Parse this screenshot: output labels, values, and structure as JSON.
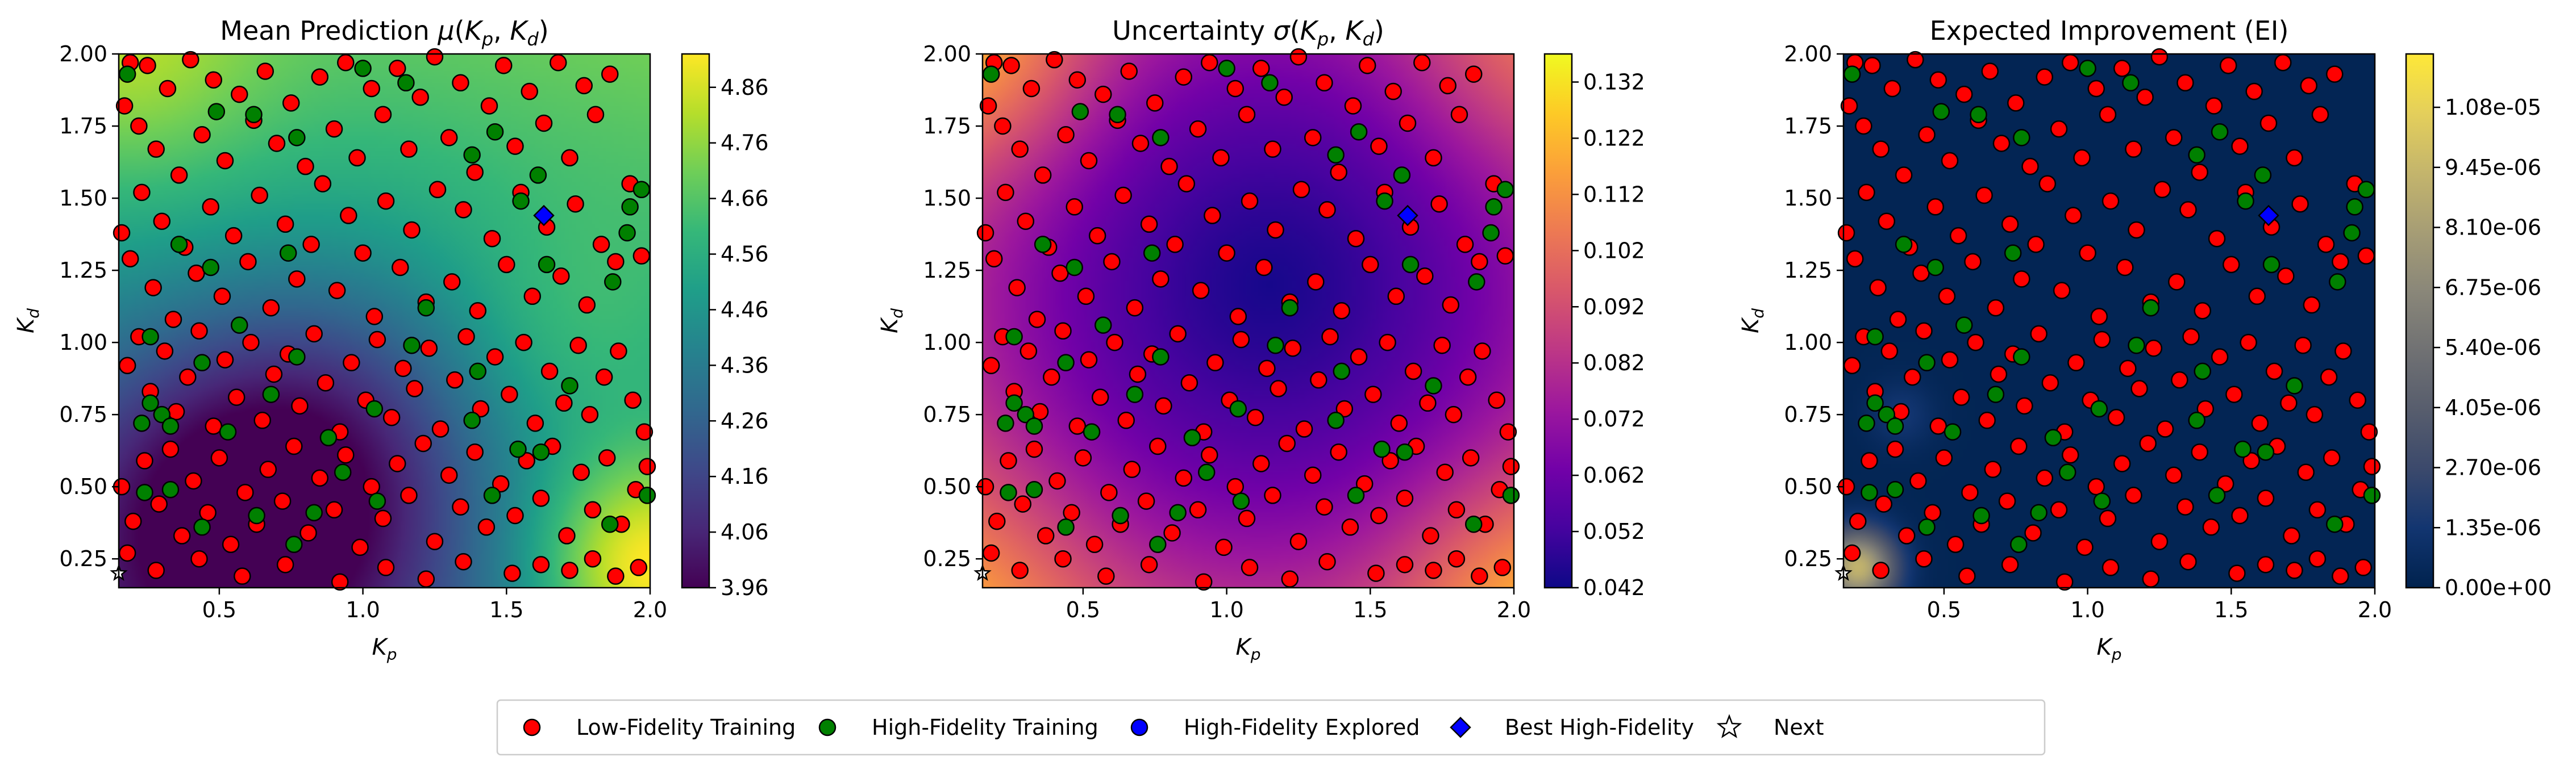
{
  "chart_data": [
    {
      "type": "heatmap",
      "title": "Mean Prediction μ(K_p, K_d)",
      "title_parts": {
        "pre": "Mean Prediction ",
        "var": "μ",
        "open": "(",
        "a": "K",
        "a_sub": "p",
        "comma": ", ",
        "b": "K",
        "b_sub": "d",
        "close": ")"
      },
      "xlabel": {
        "base": "K",
        "sub": "p"
      },
      "ylabel": {
        "base": "K",
        "sub": "d"
      },
      "xlim": [
        0.15,
        2.0
      ],
      "ylim": [
        0.15,
        2.0
      ],
      "xticks": [
        "0.5",
        "1.0",
        "1.5",
        "2.0"
      ],
      "yticks": [
        "0.25",
        "0.50",
        "0.75",
        "1.00",
        "1.25",
        "1.50",
        "1.75",
        "2.00"
      ],
      "colormap": "viridis",
      "colorbar_range": [
        3.96,
        4.92
      ],
      "colorbar_ticks": [
        "3.96",
        "4.06",
        "4.16",
        "4.26",
        "4.36",
        "4.46",
        "4.56",
        "4.66",
        "4.76",
        "4.86"
      ]
    },
    {
      "type": "heatmap",
      "title": "Uncertainty σ(K_p, K_d)",
      "title_parts": {
        "pre": "Uncertainty ",
        "var": "σ",
        "open": "(",
        "a": "K",
        "a_sub": "p",
        "comma": ", ",
        "b": "K",
        "b_sub": "d",
        "close": ")"
      },
      "xlabel": {
        "base": "K",
        "sub": "p"
      },
      "ylabel": {
        "base": "K",
        "sub": "d"
      },
      "xlim": [
        0.15,
        2.0
      ],
      "ylim": [
        0.15,
        2.0
      ],
      "xticks": [
        "0.5",
        "1.0",
        "1.5",
        "2.0"
      ],
      "yticks": [
        "0.25",
        "0.50",
        "0.75",
        "1.00",
        "1.25",
        "1.50",
        "1.75",
        "2.00"
      ],
      "colormap": "plasma",
      "colorbar_range": [
        0.042,
        0.137
      ],
      "colorbar_ticks": [
        "0.042",
        "0.052",
        "0.062",
        "0.072",
        "0.082",
        "0.092",
        "0.102",
        "0.112",
        "0.122",
        "0.132"
      ]
    },
    {
      "type": "heatmap",
      "title": "Expected Improvement (EI)",
      "title_parts": {
        "pre": "Expected Improvement (EI)",
        "var": "",
        "open": "",
        "a": "",
        "a_sub": "",
        "comma": "",
        "b": "",
        "b_sub": "",
        "close": ""
      },
      "xlabel": {
        "base": "K",
        "sub": "p"
      },
      "ylabel": {
        "base": "K",
        "sub": "d"
      },
      "xlim": [
        0.15,
        2.0
      ],
      "ylim": [
        0.15,
        2.0
      ],
      "xticks": [
        "0.5",
        "1.0",
        "1.5",
        "2.0"
      ],
      "yticks": [
        "0.25",
        "0.50",
        "0.75",
        "1.00",
        "1.25",
        "1.50",
        "1.75",
        "2.00"
      ],
      "colormap": "cividis",
      "colorbar_range": [
        0.0,
        1.2e-05
      ],
      "colorbar_ticks": [
        "0.00e+00",
        "1.35e-06",
        "2.70e-06",
        "4.05e-06",
        "5.40e-06",
        "6.75e-06",
        "8.10e-06",
        "9.45e-06",
        "1.08e-05"
      ]
    }
  ],
  "points": {
    "low_fidelity": [
      [
        0.17,
        1.82
      ],
      [
        0.19,
        1.97
      ],
      [
        0.22,
        1.75
      ],
      [
        0.25,
        1.96
      ],
      [
        0.28,
        1.67
      ],
      [
        0.32,
        1.88
      ],
      [
        0.36,
        1.58
      ],
      [
        0.4,
        1.98
      ],
      [
        0.44,
        1.72
      ],
      [
        0.48,
        1.91
      ],
      [
        0.52,
        1.63
      ],
      [
        0.57,
        1.86
      ],
      [
        0.62,
        1.77
      ],
      [
        0.66,
        1.94
      ],
      [
        0.7,
        1.69
      ],
      [
        0.75,
        1.83
      ],
      [
        0.8,
        1.61
      ],
      [
        0.85,
        1.92
      ],
      [
        0.9,
        1.74
      ],
      [
        0.94,
        1.97
      ],
      [
        0.98,
        1.64
      ],
      [
        1.03,
        1.88
      ],
      [
        1.07,
        1.79
      ],
      [
        1.12,
        1.95
      ],
      [
        1.16,
        1.67
      ],
      [
        1.2,
        1.85
      ],
      [
        1.25,
        1.99
      ],
      [
        1.3,
        1.71
      ],
      [
        1.34,
        1.9
      ],
      [
        1.39,
        1.59
      ],
      [
        1.44,
        1.82
      ],
      [
        1.49,
        1.96
      ],
      [
        1.53,
        1.68
      ],
      [
        1.58,
        1.87
      ],
      [
        1.63,
        1.76
      ],
      [
        1.68,
        1.97
      ],
      [
        1.72,
        1.64
      ],
      [
        1.77,
        1.89
      ],
      [
        1.81,
        1.79
      ],
      [
        1.86,
        1.93
      ],
      [
        0.16,
        1.38
      ],
      [
        0.19,
        1.29
      ],
      [
        0.23,
        1.52
      ],
      [
        0.27,
        1.19
      ],
      [
        0.3,
        1.42
      ],
      [
        0.34,
        1.08
      ],
      [
        0.38,
        1.33
      ],
      [
        0.42,
        1.24
      ],
      [
        0.47,
        1.47
      ],
      [
        0.51,
        1.16
      ],
      [
        0.55,
        1.37
      ],
      [
        0.6,
        1.28
      ],
      [
        0.64,
        1.51
      ],
      [
        0.68,
        1.12
      ],
      [
        0.73,
        1.41
      ],
      [
        0.77,
        1.22
      ],
      [
        0.82,
        1.34
      ],
      [
        0.86,
        1.55
      ],
      [
        0.91,
        1.18
      ],
      [
        0.95,
        1.44
      ],
      [
        1.0,
        1.31
      ],
      [
        1.04,
        1.09
      ],
      [
        1.08,
        1.49
      ],
      [
        1.13,
        1.26
      ],
      [
        1.17,
        1.39
      ],
      [
        1.22,
        1.14
      ],
      [
        1.26,
        1.53
      ],
      [
        1.31,
        1.21
      ],
      [
        1.35,
        1.46
      ],
      [
        1.4,
        1.11
      ],
      [
        1.45,
        1.36
      ],
      [
        1.5,
        1.27
      ],
      [
        1.55,
        1.52
      ],
      [
        1.59,
        1.16
      ],
      [
        1.64,
        1.4
      ],
      [
        1.69,
        1.23
      ],
      [
        1.74,
        1.48
      ],
      [
        1.78,
        1.13
      ],
      [
        1.83,
        1.34
      ],
      [
        1.88,
        1.28
      ],
      [
        1.93,
        1.55
      ],
      [
        1.97,
        1.3
      ],
      [
        0.18,
        0.92
      ],
      [
        0.22,
        1.02
      ],
      [
        0.26,
        0.83
      ],
      [
        0.31,
        0.97
      ],
      [
        0.35,
        0.76
      ],
      [
        0.39,
        0.88
      ],
      [
        0.43,
        1.04
      ],
      [
        0.48,
        0.71
      ],
      [
        0.52,
        0.94
      ],
      [
        0.56,
        0.81
      ],
      [
        0.61,
        1.0
      ],
      [
        0.65,
        0.73
      ],
      [
        0.69,
        0.89
      ],
      [
        0.74,
        0.96
      ],
      [
        0.78,
        0.78
      ],
      [
        0.83,
        1.03
      ],
      [
        0.87,
        0.86
      ],
      [
        0.92,
        0.69
      ],
      [
        0.96,
        0.93
      ],
      [
        1.01,
        0.8
      ],
      [
        1.05,
        1.01
      ],
      [
        1.1,
        0.74
      ],
      [
        1.14,
        0.91
      ],
      [
        1.18,
        0.84
      ],
      [
        1.23,
        0.98
      ],
      [
        1.27,
        0.7
      ],
      [
        1.32,
        0.87
      ],
      [
        1.36,
        1.02
      ],
      [
        1.41,
        0.77
      ],
      [
        1.46,
        0.95
      ],
      [
        1.51,
        0.82
      ],
      [
        1.56,
        1.0
      ],
      [
        1.6,
        0.72
      ],
      [
        1.65,
        0.9
      ],
      [
        1.7,
        0.79
      ],
      [
        1.75,
        0.99
      ],
      [
        1.79,
        0.75
      ],
      [
        1.84,
        0.88
      ],
      [
        1.89,
        0.97
      ],
      [
        1.94,
        0.8
      ],
      [
        1.98,
        0.69
      ],
      [
        0.16,
        0.5
      ],
      [
        0.2,
        0.38
      ],
      [
        0.24,
        0.59
      ],
      [
        0.29,
        0.44
      ],
      [
        0.33,
        0.63
      ],
      [
        0.37,
        0.33
      ],
      [
        0.41,
        0.52
      ],
      [
        0.46,
        0.41
      ],
      [
        0.5,
        0.6
      ],
      [
        0.54,
        0.3
      ],
      [
        0.59,
        0.48
      ],
      [
        0.63,
        0.37
      ],
      [
        0.67,
        0.56
      ],
      [
        0.72,
        0.45
      ],
      [
        0.76,
        0.64
      ],
      [
        0.81,
        0.34
      ],
      [
        0.85,
        0.53
      ],
      [
        0.9,
        0.42
      ],
      [
        0.94,
        0.61
      ],
      [
        0.99,
        0.29
      ],
      [
        1.03,
        0.5
      ],
      [
        1.07,
        0.39
      ],
      [
        1.12,
        0.58
      ],
      [
        1.16,
        0.47
      ],
      [
        1.21,
        0.65
      ],
      [
        1.25,
        0.31
      ],
      [
        1.3,
        0.54
      ],
      [
        1.34,
        0.43
      ],
      [
        1.39,
        0.62
      ],
      [
        1.43,
        0.36
      ],
      [
        1.48,
        0.51
      ],
      [
        1.53,
        0.4
      ],
      [
        1.57,
        0.59
      ],
      [
        1.62,
        0.46
      ],
      [
        1.66,
        0.64
      ],
      [
        1.71,
        0.33
      ],
      [
        1.76,
        0.55
      ],
      [
        1.8,
        0.42
      ],
      [
        1.85,
        0.6
      ],
      [
        1.9,
        0.37
      ],
      [
        1.95,
        0.49
      ],
      [
        1.99,
        0.57
      ],
      [
        0.18,
        0.27
      ],
      [
        0.28,
        0.21
      ],
      [
        0.43,
        0.25
      ],
      [
        0.58,
        0.19
      ],
      [
        0.73,
        0.23
      ],
      [
        0.92,
        0.17
      ],
      [
        1.08,
        0.22
      ],
      [
        1.22,
        0.18
      ],
      [
        1.35,
        0.24
      ],
      [
        1.52,
        0.2
      ],
      [
        1.62,
        0.23
      ],
      [
        1.72,
        0.21
      ],
      [
        1.8,
        0.25
      ],
      [
        1.88,
        0.19
      ],
      [
        1.96,
        0.22
      ]
    ],
    "high_fidelity": [
      [
        0.18,
        1.93
      ],
      [
        0.49,
        1.8
      ],
      [
        0.62,
        1.79
      ],
      [
        0.77,
        1.71
      ],
      [
        1.0,
        1.95
      ],
      [
        1.15,
        1.9
      ],
      [
        1.38,
        1.65
      ],
      [
        1.46,
        1.73
      ],
      [
        1.61,
        1.58
      ],
      [
        1.93,
        1.47
      ],
      [
        1.97,
        1.53
      ],
      [
        0.36,
        1.34
      ],
      [
        0.47,
        1.26
      ],
      [
        0.74,
        1.31
      ],
      [
        1.22,
        1.12
      ],
      [
        1.55,
        1.49
      ],
      [
        1.64,
        1.27
      ],
      [
        1.87,
        1.21
      ],
      [
        1.92,
        1.38
      ],
      [
        0.26,
        1.02
      ],
      [
        0.44,
        0.93
      ],
      [
        0.57,
        1.06
      ],
      [
        0.77,
        0.95
      ],
      [
        1.17,
        0.99
      ],
      [
        1.4,
        0.9
      ],
      [
        1.72,
        0.85
      ],
      [
        0.26,
        0.79
      ],
      [
        0.3,
        0.75
      ],
      [
        0.33,
        0.71
      ],
      [
        0.23,
        0.72
      ],
      [
        0.53,
        0.69
      ],
      [
        0.68,
        0.82
      ],
      [
        0.88,
        0.67
      ],
      [
        1.04,
        0.77
      ],
      [
        1.38,
        0.73
      ],
      [
        1.54,
        0.63
      ],
      [
        0.33,
        0.49
      ],
      [
        0.63,
        0.4
      ],
      [
        0.83,
        0.41
      ],
      [
        0.93,
        0.55
      ],
      [
        1.05,
        0.45
      ],
      [
        1.45,
        0.47
      ],
      [
        1.62,
        0.62
      ],
      [
        1.86,
        0.37
      ],
      [
        1.99,
        0.47
      ],
      [
        0.24,
        0.48
      ],
      [
        0.76,
        0.3
      ],
      [
        0.44,
        0.36
      ]
    ],
    "best_high_fidelity": [
      [
        1.63,
        1.44
      ]
    ],
    "next": [
      [
        0.15,
        0.2
      ]
    ]
  },
  "legend": {
    "items": [
      {
        "label": "Low-Fidelity Training",
        "marker": "circle",
        "color": "#ff0000"
      },
      {
        "label": "High-Fidelity Training",
        "marker": "circle",
        "color": "#008000"
      },
      {
        "label": "High-Fidelity Explored",
        "marker": "circle",
        "color": "#0000ff"
      },
      {
        "label": "Best High-Fidelity",
        "marker": "diamond",
        "color": "#0000ff"
      },
      {
        "label": "Next",
        "marker": "star",
        "color": "#ffffff"
      }
    ]
  }
}
